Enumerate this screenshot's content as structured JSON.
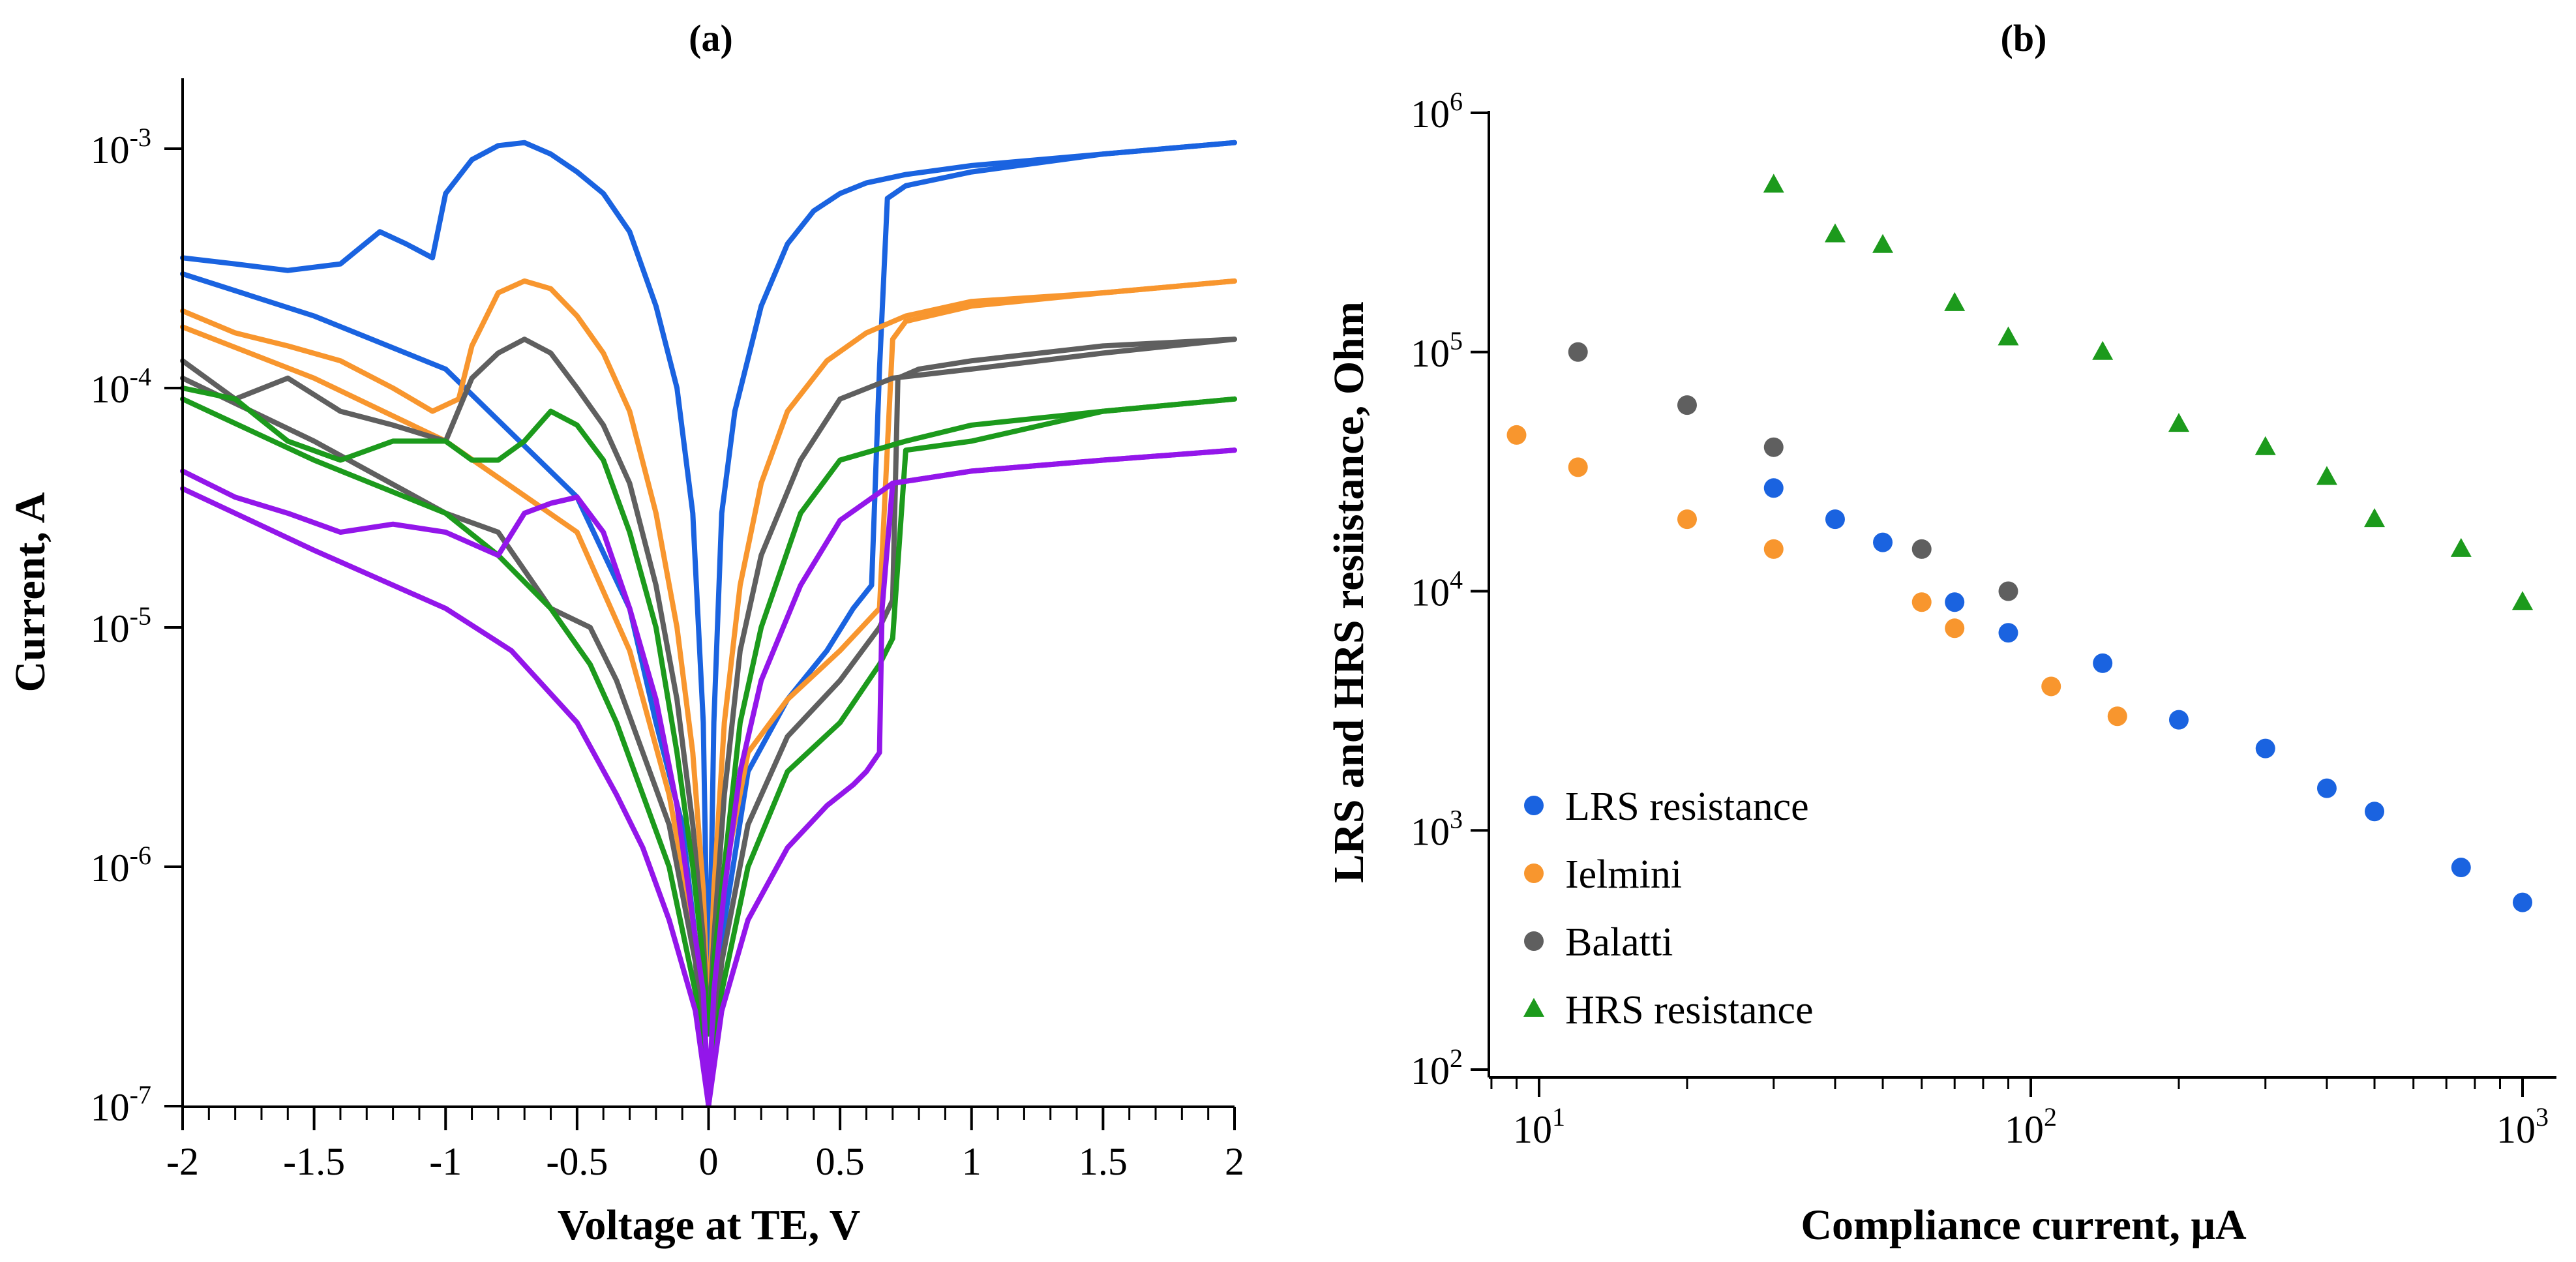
{
  "chart_data": [
    {
      "id": "a",
      "type": "line",
      "panel_label": "(a)",
      "xlabel": "Voltage at TE, V",
      "ylabel": "Current, A",
      "yscale": "log",
      "xlim": [
        -2,
        2
      ],
      "ylim": [
        1e-07,
        0.002
      ],
      "x_ticks": [
        -2,
        -1.5,
        -1,
        -0.5,
        0,
        0.5,
        1,
        1.5,
        2
      ],
      "x_tick_labels": [
        "-2",
        "-1.5",
        "-1",
        "-0.5",
        "0",
        "0.5",
        "1",
        "1.5",
        "2"
      ],
      "y_ticks": [
        {
          "value": 1e-07,
          "base": "10",
          "exp": "-7"
        },
        {
          "value": 1e-06,
          "base": "10",
          "exp": "-6"
        },
        {
          "value": 1e-05,
          "base": "10",
          "exp": "-5"
        },
        {
          "value": 0.0001,
          "base": "10",
          "exp": "-4"
        },
        {
          "value": 0.001,
          "base": "10",
          "exp": "-3"
        }
      ],
      "series": [
        {
          "name": "blue",
          "color": "#1a63e0",
          "x": [
            -2,
            -1.8,
            -1.6,
            -1.4,
            -1.25,
            -1.15,
            -1.05,
            -1.0,
            -0.9,
            -0.8,
            -0.7,
            -0.6,
            -0.5,
            -0.4,
            -0.3,
            -0.2,
            -0.12,
            -0.06,
            -0.02,
            0,
            0.02,
            0.05,
            0.1,
            0.2,
            0.3,
            0.4,
            0.5,
            0.6,
            0.75,
            1.0,
            1.5,
            2.0
          ],
          "y": [
            0.00035,
            0.00033,
            0.00031,
            0.00033,
            0.00045,
            0.0004,
            0.00035,
            0.00065,
            0.0009,
            0.00103,
            0.00106,
            0.00095,
            0.0008,
            0.00065,
            0.00045,
            0.00022,
            0.0001,
            3e-05,
            4e-06,
            2e-07,
            4e-06,
            3e-05,
            8e-05,
            0.00022,
            0.0004,
            0.00055,
            0.00065,
            0.00072,
            0.00078,
            0.00085,
            0.00095,
            0.00106
          ]
        },
        {
          "name": "blue-reverse",
          "color": "#1a63e0",
          "x": [
            -2,
            -1.5,
            -1.0,
            -0.5,
            -0.3,
            -0.2,
            -0.1,
            -0.05,
            0,
            0.05,
            0.15,
            0.3,
            0.45,
            0.55,
            0.62,
            0.65,
            0.68,
            0.75,
            1.0,
            1.5,
            2.0
          ],
          "y": [
            0.0003,
            0.0002,
            0.00012,
            3.5e-05,
            1.2e-05,
            4e-06,
            1.5e-06,
            5e-07,
            1e-07,
            5e-07,
            2.5e-06,
            5e-06,
            8e-06,
            1.2e-05,
            1.5e-05,
            0.00012,
            0.00062,
            0.0007,
            0.0008,
            0.00095,
            0.00106
          ]
        },
        {
          "name": "orange",
          "color": "#f8962e",
          "x": [
            -2,
            -1.8,
            -1.6,
            -1.4,
            -1.2,
            -1.05,
            -0.95,
            -0.9,
            -0.8,
            -0.7,
            -0.6,
            -0.5,
            -0.4,
            -0.3,
            -0.2,
            -0.12,
            -0.06,
            -0.02,
            0,
            0.02,
            0.06,
            0.12,
            0.2,
            0.3,
            0.45,
            0.6,
            0.75,
            1.0,
            1.5,
            2.0
          ],
          "y": [
            0.00021,
            0.00017,
            0.00015,
            0.00013,
            0.0001,
            8e-05,
            9e-05,
            0.00015,
            0.00025,
            0.00028,
            0.00026,
            0.0002,
            0.00014,
            8e-05,
            3e-05,
            1e-05,
            3e-06,
            8e-07,
            2e-07,
            8e-07,
            4e-06,
            1.5e-05,
            4e-05,
            8e-05,
            0.00013,
            0.00017,
            0.0002,
            0.00023,
            0.00025,
            0.00028
          ]
        },
        {
          "name": "orange-reverse",
          "color": "#f8962e",
          "x": [
            -2,
            -1.5,
            -1.0,
            -0.5,
            -0.3,
            -0.15,
            -0.05,
            0,
            0.05,
            0.15,
            0.3,
            0.5,
            0.65,
            0.7,
            0.75,
            1.0,
            1.5,
            2.0
          ],
          "y": [
            0.00018,
            0.00011,
            6e-05,
            2.5e-05,
            8e-06,
            2e-06,
            5e-07,
            1e-07,
            8e-07,
            3e-06,
            5e-06,
            8e-06,
            1.2e-05,
            0.00016,
            0.00019,
            0.00022,
            0.00025,
            0.00028
          ]
        },
        {
          "name": "gray",
          "color": "#5f5f5f",
          "x": [
            -2,
            -1.8,
            -1.6,
            -1.4,
            -1.2,
            -1.0,
            -0.9,
            -0.8,
            -0.7,
            -0.6,
            -0.5,
            -0.4,
            -0.3,
            -0.2,
            -0.12,
            -0.06,
            -0.02,
            0,
            0.02,
            0.06,
            0.12,
            0.2,
            0.35,
            0.5,
            0.7,
            1.0,
            1.5,
            2.0
          ],
          "y": [
            0.00013,
            9e-05,
            0.00011,
            8e-05,
            7e-05,
            6e-05,
            0.00011,
            0.00014,
            0.00016,
            0.00014,
            0.0001,
            7e-05,
            4e-05,
            1.5e-05,
            5e-06,
            1.5e-06,
            5e-07,
            2e-07,
            5e-07,
            2e-06,
            8e-06,
            2e-05,
            5e-05,
            9e-05,
            0.00011,
            0.00012,
            0.00014,
            0.00016
          ]
        },
        {
          "name": "gray-reverse",
          "color": "#5f5f5f",
          "x": [
            -2,
            -1.5,
            -1.0,
            -0.8,
            -0.6,
            -0.45,
            -0.35,
            -0.25,
            -0.15,
            -0.05,
            0,
            0.05,
            0.15,
            0.3,
            0.5,
            0.65,
            0.7,
            0.72,
            0.8,
            1.0,
            1.5,
            2.0
          ],
          "y": [
            0.00011,
            6e-05,
            3e-05,
            2.5e-05,
            1.2e-05,
            1e-05,
            6e-06,
            3e-06,
            1.5e-06,
            4e-07,
            1e-07,
            4e-07,
            1.5e-06,
            3.5e-06,
            6e-06,
            1e-05,
            1.3e-05,
            0.00011,
            0.00012,
            0.00013,
            0.00015,
            0.00016
          ]
        },
        {
          "name": "green",
          "color": "#1c9a1c",
          "x": [
            -2,
            -1.8,
            -1.6,
            -1.4,
            -1.2,
            -1.0,
            -0.9,
            -0.8,
            -0.7,
            -0.6,
            -0.5,
            -0.4,
            -0.3,
            -0.2,
            -0.12,
            -0.06,
            -0.02,
            0,
            0.02,
            0.06,
            0.12,
            0.2,
            0.35,
            0.5,
            0.75,
            1.0,
            1.5,
            2.0
          ],
          "y": [
            0.0001,
            9e-05,
            6e-05,
            5e-05,
            6e-05,
            6e-05,
            5e-05,
            5e-05,
            6e-05,
            8e-05,
            7e-05,
            5e-05,
            2.5e-05,
            1e-05,
            3e-06,
            1e-06,
            4e-07,
            2e-07,
            4e-07,
            1e-06,
            4e-06,
            1e-05,
            3e-05,
            5e-05,
            6e-05,
            7e-05,
            8e-05,
            9e-05
          ]
        },
        {
          "name": "green-reverse",
          "color": "#1c9a1c",
          "x": [
            -2,
            -1.5,
            -1.0,
            -0.8,
            -0.6,
            -0.45,
            -0.35,
            -0.25,
            -0.15,
            -0.05,
            0,
            0.05,
            0.15,
            0.3,
            0.5,
            0.65,
            0.7,
            0.75,
            1.0,
            1.5,
            2.0
          ],
          "y": [
            9e-05,
            5e-05,
            3e-05,
            2e-05,
            1.2e-05,
            7e-06,
            4e-06,
            2e-06,
            1e-06,
            3e-07,
            1e-07,
            3e-07,
            1e-06,
            2.5e-06,
            4e-06,
            7e-06,
            9e-06,
            5.5e-05,
            6e-05,
            8e-05,
            9e-05
          ]
        },
        {
          "name": "purple",
          "color": "#9316ea",
          "x": [
            -2,
            -1.8,
            -1.6,
            -1.4,
            -1.2,
            -1.0,
            -0.8,
            -0.7,
            -0.6,
            -0.5,
            -0.4,
            -0.3,
            -0.2,
            -0.12,
            -0.06,
            -0.02,
            0,
            0.02,
            0.06,
            0.12,
            0.2,
            0.35,
            0.5,
            0.7,
            1.0,
            1.5,
            2.0
          ],
          "y": [
            4.5e-05,
            3.5e-05,
            3e-05,
            2.5e-05,
            2.7e-05,
            2.5e-05,
            2e-05,
            3e-05,
            3.3e-05,
            3.5e-05,
            2.5e-05,
            1.2e-05,
            5e-06,
            1.8e-06,
            6e-07,
            3e-07,
            1e-07,
            3e-07,
            8e-07,
            2.5e-06,
            6e-06,
            1.5e-05,
            2.8e-05,
            4e-05,
            4.5e-05,
            5e-05,
            5.5e-05
          ]
        },
        {
          "name": "purple-reverse",
          "color": "#9316ea",
          "x": [
            -2,
            -1.5,
            -1.0,
            -0.75,
            -0.5,
            -0.35,
            -0.25,
            -0.15,
            -0.05,
            0,
            0.05,
            0.15,
            0.3,
            0.45,
            0.55,
            0.6,
            0.65,
            0.66,
            0.7,
            1.0,
            1.5,
            2.0
          ],
          "y": [
            3.8e-05,
            2.1e-05,
            1.2e-05,
            8e-06,
            4e-06,
            2e-06,
            1.2e-06,
            6e-07,
            2.5e-07,
            1e-07,
            2.5e-07,
            6e-07,
            1.2e-06,
            1.8e-06,
            2.2e-06,
            2.5e-06,
            3e-06,
            1.2e-05,
            4e-05,
            4.5e-05,
            5e-05,
            5.5e-05
          ]
        }
      ]
    },
    {
      "id": "b",
      "type": "scatter",
      "panel_label": "(b)",
      "xlabel": "Compliance current, μA",
      "ylabel": "LRS and HRS resiistance, Ohm",
      "xscale": "log",
      "yscale": "log",
      "xlim": [
        8,
        1100
      ],
      "ylim": [
        100,
        1000000
      ],
      "x_ticks": [
        {
          "value": 10,
          "base": "10",
          "exp": "1"
        },
        {
          "value": 100,
          "base": "10",
          "exp": "2"
        },
        {
          "value": 1000,
          "base": "10",
          "exp": "3"
        }
      ],
      "y_ticks": [
        {
          "value": 100,
          "base": "10",
          "exp": "2"
        },
        {
          "value": 1000,
          "base": "10",
          "exp": "3"
        },
        {
          "value": 10000,
          "base": "10",
          "exp": "4"
        },
        {
          "value": 100000,
          "base": "10",
          "exp": "5"
        },
        {
          "value": 1000000,
          "base": "10",
          "exp": "6"
        }
      ],
      "legend_position": "bottom-left",
      "series": [
        {
          "name": "LRS resistance",
          "color": "#1a63e0",
          "marker": "circle",
          "x": [
            30,
            40,
            50,
            70,
            90,
            140,
            200,
            300,
            400,
            500,
            750,
            1000
          ],
          "y": [
            27000,
            20000,
            16000,
            9000,
            6700,
            5000,
            2900,
            2200,
            1500,
            1200,
            700,
            500
          ]
        },
        {
          "name": "Ielmini",
          "color": "#f8962e",
          "marker": "circle",
          "x": [
            9,
            12,
            20,
            30,
            60,
            70,
            110,
            150
          ],
          "y": [
            45000,
            33000,
            20000,
            15000,
            9000,
            7000,
            4000,
            3000
          ]
        },
        {
          "name": "Balatti",
          "color": "#5f5f5f",
          "marker": "circle",
          "x": [
            12,
            20,
            30,
            60,
            90
          ],
          "y": [
            100000,
            60000,
            40000,
            15000,
            10000
          ]
        },
        {
          "name": "HRS resistance",
          "color": "#1c9a1c",
          "marker": "triangle",
          "x": [
            30,
            40,
            50,
            70,
            90,
            140,
            200,
            300,
            400,
            500,
            750,
            1000
          ],
          "y": [
            500000,
            310000,
            280000,
            160000,
            115000,
            100000,
            50000,
            40000,
            30000,
            20000,
            15000,
            9000
          ]
        }
      ]
    }
  ]
}
